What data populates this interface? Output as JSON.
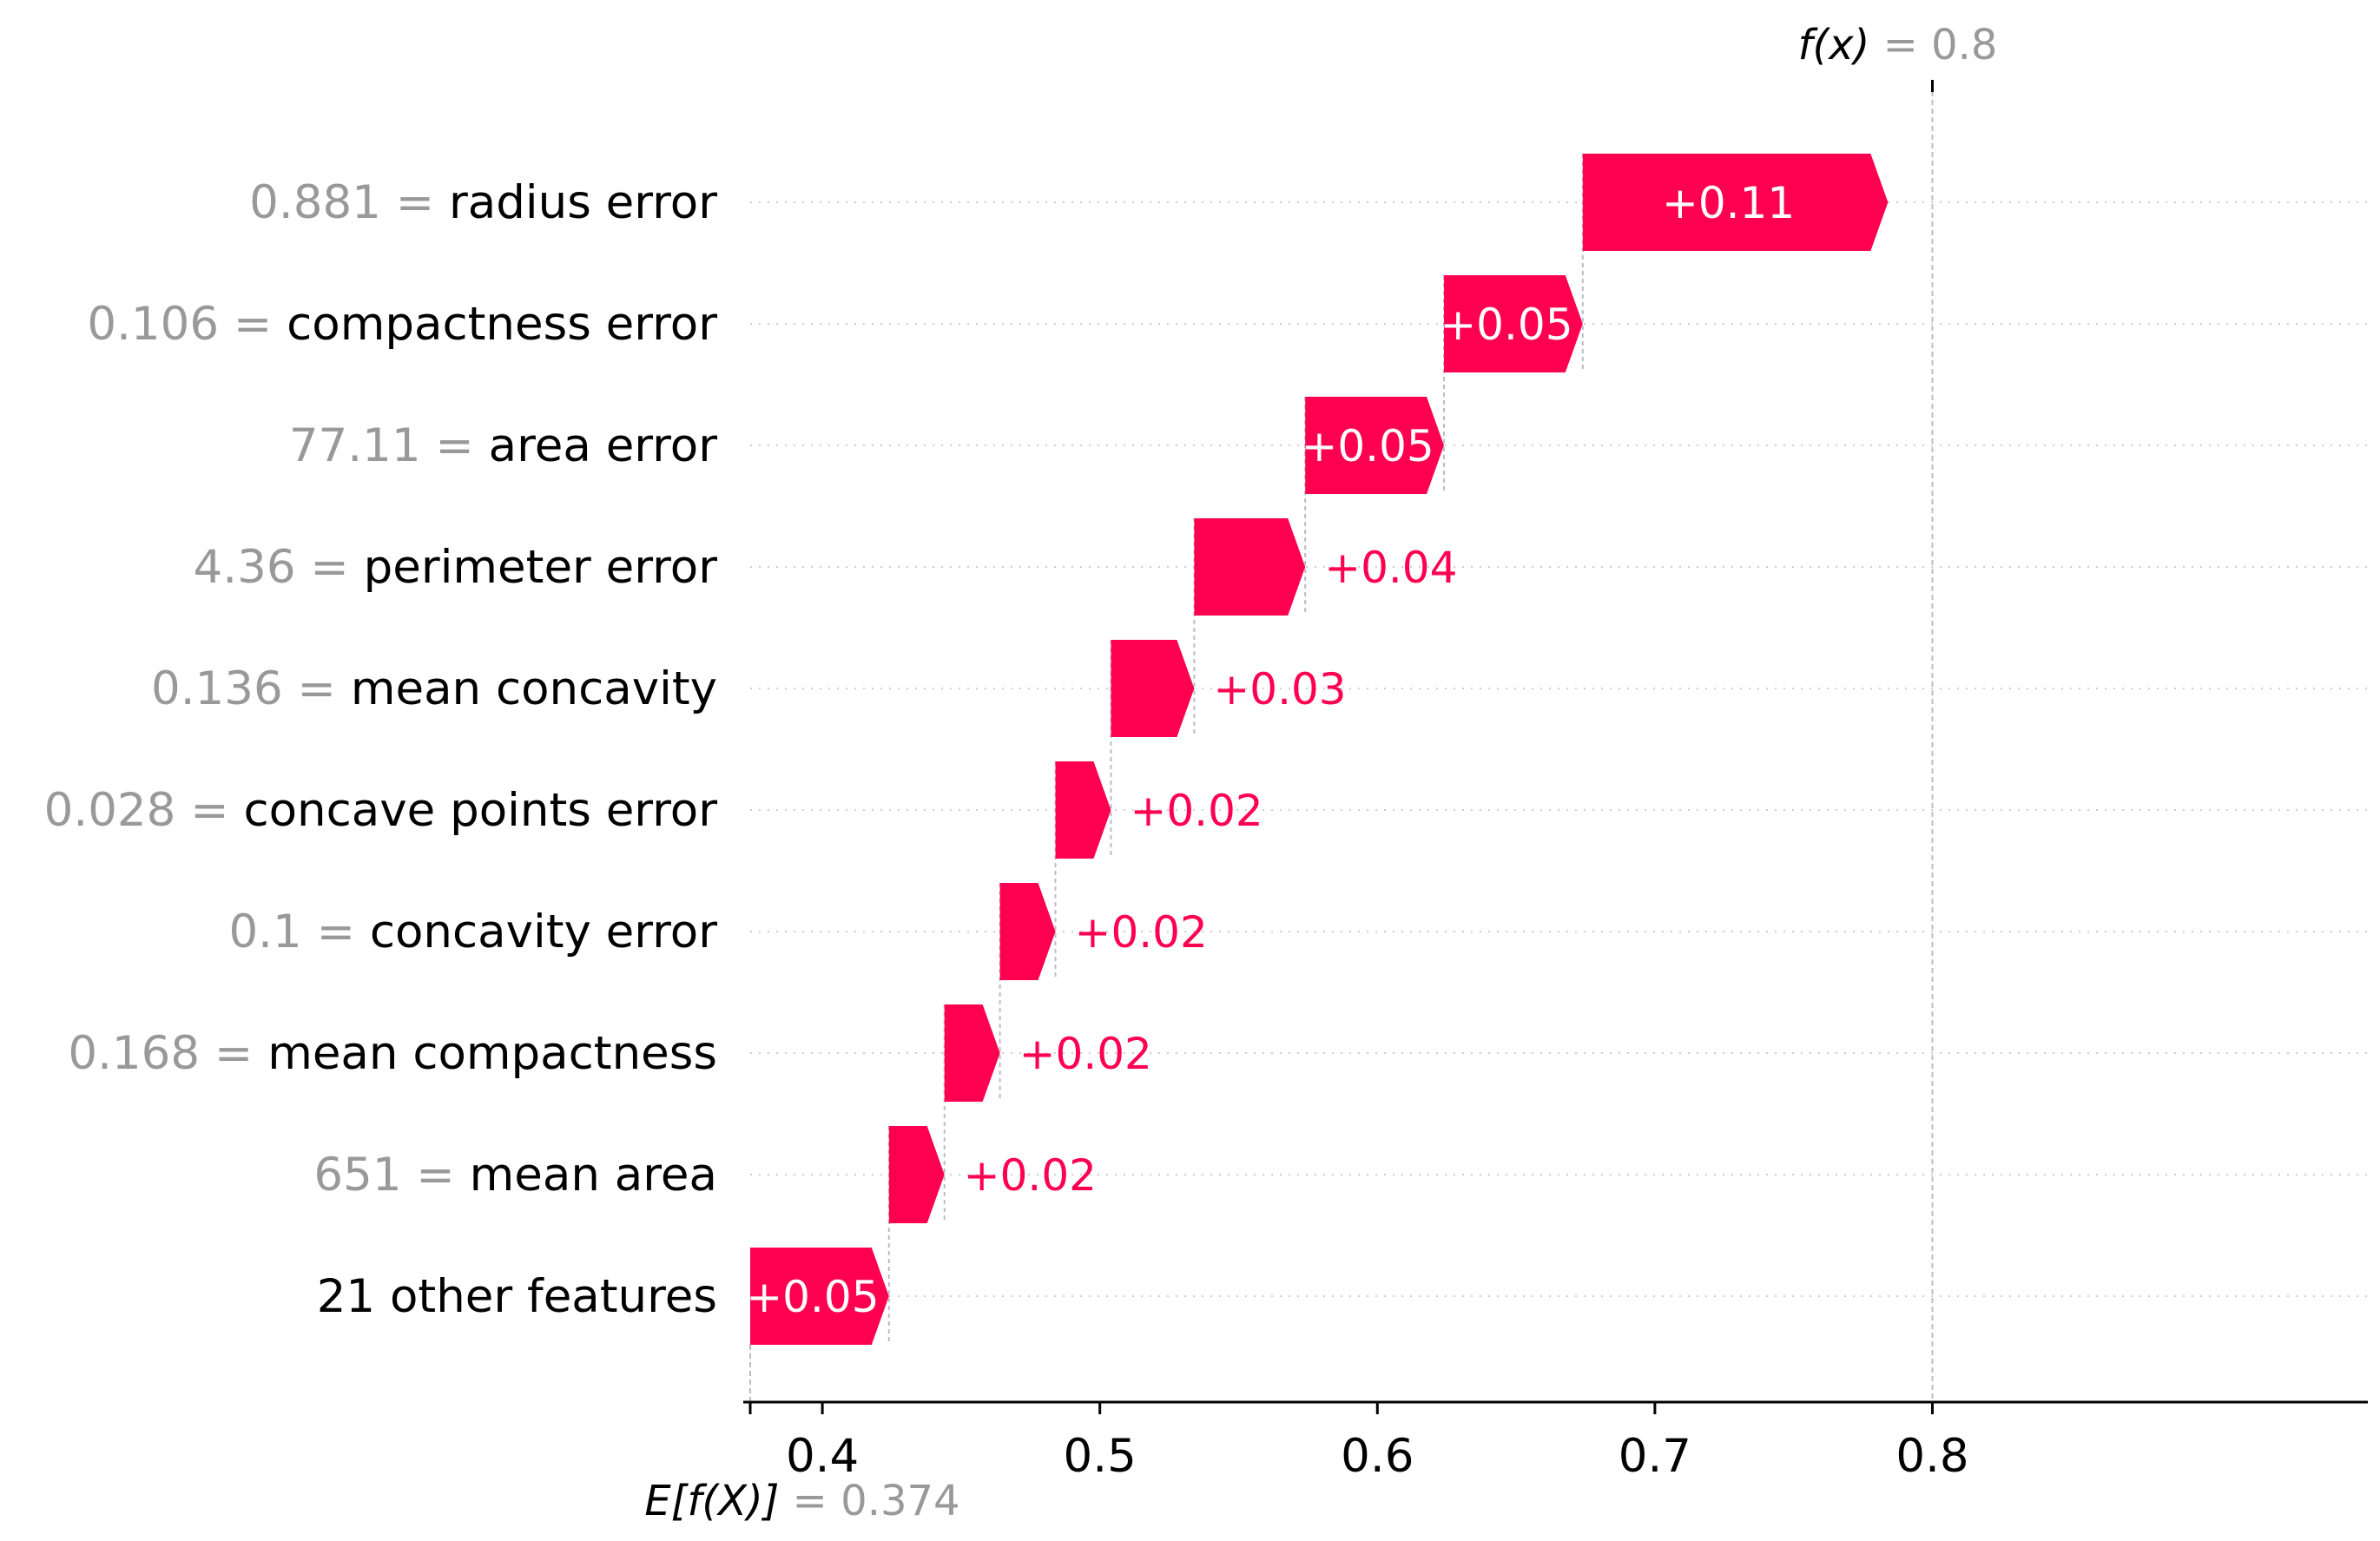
{
  "chart_data": {
    "type": "waterfall",
    "base_value": {
      "label_math": "E[f(X)]",
      "eq": "=",
      "value_text": "0.374",
      "value": 0.374
    },
    "output_value": {
      "label_math": "f(x)",
      "eq": "=",
      "value_text": "0.8",
      "value": 0.8
    },
    "features": [
      {
        "value_text": "0.881",
        "eq": "=",
        "name": "radius error",
        "contribution": 0.11,
        "label": "+0.11"
      },
      {
        "value_text": "0.106",
        "eq": "=",
        "name": "compactness error",
        "contribution": 0.05,
        "label": "+0.05"
      },
      {
        "value_text": "77.11",
        "eq": "=",
        "name": "area error",
        "contribution": 0.05,
        "label": "+0.05"
      },
      {
        "value_text": "4.36",
        "eq": "=",
        "name": "perimeter error",
        "contribution": 0.04,
        "label": "+0.04"
      },
      {
        "value_text": "0.136",
        "eq": "=",
        "name": "mean concavity",
        "contribution": 0.03,
        "label": "+0.03"
      },
      {
        "value_text": "0.028",
        "eq": "=",
        "name": "concave points error",
        "contribution": 0.02,
        "label": "+0.02"
      },
      {
        "value_text": "0.1",
        "eq": "=",
        "name": "concavity error",
        "contribution": 0.02,
        "label": "+0.02"
      },
      {
        "value_text": "0.168",
        "eq": "=",
        "name": "mean compactness",
        "contribution": 0.02,
        "label": "+0.02"
      },
      {
        "value_text": "651",
        "eq": "=",
        "name": "mean area",
        "contribution": 0.02,
        "label": "+0.02"
      },
      {
        "value_text": "",
        "eq": "",
        "name": "21 other features",
        "contribution": 0.05,
        "label": "+0.05"
      }
    ],
    "x_ticks": [
      "0.4",
      "0.5",
      "0.6",
      "0.7",
      "0.8"
    ],
    "xlim": [
      0.374,
      0.87
    ],
    "colors": {
      "positive": "#ff0051",
      "value_text": "#999999",
      "gridline": "#cccccc",
      "connector": "#bbbbcc",
      "axis": "#000000"
    }
  }
}
